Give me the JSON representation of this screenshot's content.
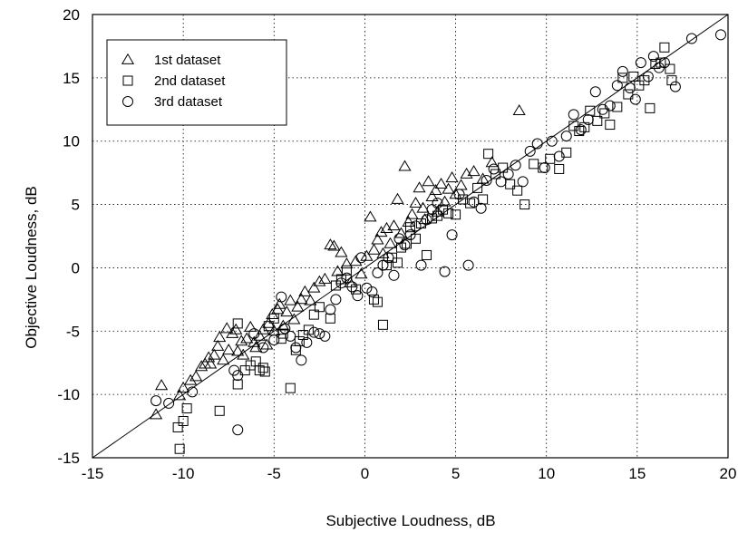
{
  "chart_data": {
    "type": "scatter",
    "title": "",
    "xlabel": "Subjective Loudness, dB",
    "ylabel": "Objective Loudness, dB",
    "xlim": [
      -15,
      20
    ],
    "ylim": [
      -15,
      20
    ],
    "xticks": [
      -15,
      -10,
      -5,
      0,
      5,
      10,
      15,
      20
    ],
    "yticks": [
      -15,
      -10,
      -5,
      0,
      5,
      10,
      15,
      20
    ],
    "x_tick_labels": [
      "-15",
      "-10",
      "-5",
      "0",
      "5",
      "10",
      "15",
      "20"
    ],
    "y_tick_labels": [
      "-15",
      "-10",
      "-5",
      "0",
      "5",
      "10",
      "15",
      "20"
    ],
    "grid": true,
    "legend": {
      "placement": "top-left",
      "entries": [
        "1st dataset",
        "2nd dataset",
        "3rd dataset"
      ]
    },
    "reference_line": {
      "from": [
        -15,
        -15
      ],
      "to": [
        20,
        20
      ]
    },
    "series": [
      {
        "name": "1st dataset",
        "marker": "triangle",
        "points": [
          [
            -11.5,
            -11.6
          ],
          [
            -11.2,
            -9.3
          ],
          [
            -10.2,
            -10.1
          ],
          [
            -10,
            -9.5
          ],
          [
            -9.6,
            -8.9
          ],
          [
            -9.3,
            -8.6
          ],
          [
            -9,
            -7.8
          ],
          [
            -8.8,
            -7.6
          ],
          [
            -8.6,
            -7.1
          ],
          [
            -8.5,
            -7.6
          ],
          [
            -8.3,
            -6.9
          ],
          [
            -8.1,
            -6.2
          ],
          [
            -8,
            -5.5
          ],
          [
            -7.8,
            -7.3
          ],
          [
            -7.6,
            -4.8
          ],
          [
            -7.5,
            -6.5
          ],
          [
            -7.3,
            -5.2
          ],
          [
            -7.1,
            -4.9
          ],
          [
            -7,
            -6.6
          ],
          [
            -6.8,
            -5.8
          ],
          [
            -6.7,
            -6.9
          ],
          [
            -6.5,
            -5.6
          ],
          [
            -6.3,
            -4.7
          ],
          [
            -6.1,
            -5.9
          ],
          [
            -6,
            -6.3
          ],
          [
            -5.8,
            -5.4
          ],
          [
            -5.6,
            -4.9
          ],
          [
            -5.4,
            -6.1
          ],
          [
            -5.3,
            -4.4
          ],
          [
            -5.1,
            -3.7
          ],
          [
            -5,
            -5
          ],
          [
            -4.8,
            -3.3
          ],
          [
            -4.7,
            -2.9
          ],
          [
            -4.5,
            -4.6
          ],
          [
            -4.3,
            -3.5
          ],
          [
            -4.1,
            -2.6
          ],
          [
            -3.9,
            -4.1
          ],
          [
            -3.7,
            -3.1
          ],
          [
            -3.5,
            -2.5
          ],
          [
            -3.3,
            -1.9
          ],
          [
            -3,
            -2.6
          ],
          [
            -2.8,
            -1.6
          ],
          [
            -2.5,
            -1.1
          ],
          [
            -2.2,
            -0.9
          ],
          [
            -1.9,
            1.8
          ],
          [
            -1.7,
            1.7
          ],
          [
            -1.5,
            -0.3
          ],
          [
            -1.3,
            1.2
          ],
          [
            -1,
            0.3
          ],
          [
            -0.8,
            -1.2
          ],
          [
            -0.5,
            0.5
          ],
          [
            -0.2,
            -0.5
          ],
          [
            0.1,
            0.9
          ],
          [
            0.3,
            4
          ],
          [
            0.5,
            1.4
          ],
          [
            0.7,
            2.2
          ],
          [
            0.9,
            2.8
          ],
          [
            1,
            1.1
          ],
          [
            1.2,
            3.1
          ],
          [
            1.4,
            1.9
          ],
          [
            1.6,
            3.3
          ],
          [
            1.8,
            5.4
          ],
          [
            2,
            2.7
          ],
          [
            2.2,
            8
          ],
          [
            2.4,
            3.6
          ],
          [
            2.6,
            4.2
          ],
          [
            2.8,
            5.1
          ],
          [
            3,
            6.3
          ],
          [
            3.2,
            4.7
          ],
          [
            3.3,
            3.8
          ],
          [
            3.5,
            6.8
          ],
          [
            3.7,
            5.6
          ],
          [
            3.9,
            6.1
          ],
          [
            4,
            4.4
          ],
          [
            4.2,
            6.6
          ],
          [
            4.4,
            5.2
          ],
          [
            4.6,
            6.2
          ],
          [
            4.8,
            7.1
          ],
          [
            5,
            5.8
          ],
          [
            5.3,
            6.5
          ],
          [
            5.6,
            7.4
          ],
          [
            6,
            7.6
          ],
          [
            6.5,
            7
          ],
          [
            7,
            8.3
          ],
          [
            8.5,
            12.4
          ]
        ]
      },
      {
        "name": "2nd dataset",
        "marker": "square",
        "points": [
          [
            -10.2,
            -14.3
          ],
          [
            -10.3,
            -12.6
          ],
          [
            -10,
            -12.1
          ],
          [
            -9.8,
            -11.1
          ],
          [
            -8,
            -11.3
          ],
          [
            -7,
            -9.2
          ],
          [
            -7,
            -4.4
          ],
          [
            -6.6,
            -8.1
          ],
          [
            -6.3,
            -7.7
          ],
          [
            -6,
            -7.4
          ],
          [
            -5.8,
            -8.1
          ],
          [
            -5.6,
            -7.9
          ],
          [
            -5.5,
            -8.2
          ],
          [
            -5.3,
            -4.6
          ],
          [
            -5,
            -4
          ],
          [
            -4.6,
            -5.6
          ],
          [
            -4.5,
            -5.2
          ],
          [
            -4.1,
            -9.5
          ],
          [
            -3.8,
            -6.5
          ],
          [
            -3.6,
            -5.8
          ],
          [
            -3.4,
            -5.3
          ],
          [
            -3.1,
            -4.9
          ],
          [
            -2.8,
            -3.7
          ],
          [
            -2.5,
            -3.1
          ],
          [
            -1.9,
            -4
          ],
          [
            -1.6,
            -1.4
          ],
          [
            -1.3,
            -0.9
          ],
          [
            -1,
            -0.2
          ],
          [
            -0.5,
            -1.7
          ],
          [
            0.5,
            -2.5
          ],
          [
            0.7,
            -2.7
          ],
          [
            1,
            -4.5
          ],
          [
            1.2,
            0.2
          ],
          [
            1.5,
            0.8
          ],
          [
            1.8,
            0.4
          ],
          [
            2,
            1.6
          ],
          [
            2.3,
            1.9
          ],
          [
            2.5,
            3.2
          ],
          [
            2.8,
            2.3
          ],
          [
            3.1,
            3.5
          ],
          [
            3.4,
            1
          ],
          [
            3.7,
            3.9
          ],
          [
            4,
            4.1
          ],
          [
            4.3,
            4.6
          ],
          [
            4.6,
            4.3
          ],
          [
            5,
            4.2
          ],
          [
            5.4,
            5.4
          ],
          [
            5.8,
            5.1
          ],
          [
            6.2,
            6.3
          ],
          [
            6.5,
            5.4
          ],
          [
            6.8,
            9
          ],
          [
            7.2,
            7.4
          ],
          [
            7.6,
            7.9
          ],
          [
            8,
            6.6
          ],
          [
            8.4,
            6.1
          ],
          [
            8.8,
            5
          ],
          [
            9.3,
            8.2
          ],
          [
            9.8,
            7.9
          ],
          [
            10.2,
            8.6
          ],
          [
            10.7,
            7.8
          ],
          [
            11.1,
            9.1
          ],
          [
            11.5,
            11.2
          ],
          [
            11.8,
            10.8
          ],
          [
            12.1,
            11.1
          ],
          [
            12.4,
            12.4
          ],
          [
            12.8,
            11.6
          ],
          [
            13.2,
            12.2
          ],
          [
            13.5,
            11.3
          ],
          [
            13.9,
            12.7
          ],
          [
            14.2,
            15
          ],
          [
            14.5,
            13.7
          ],
          [
            14.8,
            15.1
          ],
          [
            15.1,
            14.4
          ],
          [
            15.4,
            14.8
          ],
          [
            15.7,
            12.6
          ],
          [
            16,
            16.1
          ],
          [
            16.3,
            16.2
          ],
          [
            16.5,
            17.4
          ],
          [
            16.8,
            15.7
          ],
          [
            16.9,
            14.8
          ]
        ]
      },
      {
        "name": "3rd dataset",
        "marker": "circle",
        "points": [
          [
            -11.5,
            -10.5
          ],
          [
            -10.8,
            -10.7
          ],
          [
            -9.5,
            -9.8
          ],
          [
            -7.2,
            -8.1
          ],
          [
            -7,
            -8.5
          ],
          [
            -7,
            -12.8
          ],
          [
            -6.1,
            -5.2
          ],
          [
            -5.6,
            -6.3
          ],
          [
            -5,
            -5.7
          ],
          [
            -4.6,
            -2.3
          ],
          [
            -4.4,
            -4.8
          ],
          [
            -4.1,
            -5.4
          ],
          [
            -3.8,
            -6.3
          ],
          [
            -3.5,
            -7.3
          ],
          [
            -3.2,
            -5.9
          ],
          [
            -2.8,
            -5.1
          ],
          [
            -2.5,
            -5.2
          ],
          [
            -2.2,
            -5.4
          ],
          [
            -1.9,
            -3.3
          ],
          [
            -1.6,
            -2.5
          ],
          [
            -1.3,
            -1.2
          ],
          [
            -1,
            -0.8
          ],
          [
            -0.7,
            -1.5
          ],
          [
            -0.4,
            -2.2
          ],
          [
            -0.2,
            0.8
          ],
          [
            0.1,
            -1.6
          ],
          [
            0.4,
            -1.9
          ],
          [
            0.7,
            -0.4
          ],
          [
            1,
            0.2
          ],
          [
            1.3,
            0.8
          ],
          [
            1.6,
            -0.6
          ],
          [
            1.9,
            2.3
          ],
          [
            2.2,
            1.8
          ],
          [
            2.5,
            2.6
          ],
          [
            2.8,
            3.3
          ],
          [
            3.1,
            0.2
          ],
          [
            3.4,
            3.8
          ],
          [
            3.7,
            4.6
          ],
          [
            4,
            5.1
          ],
          [
            4.4,
            -0.3
          ],
          [
            4.8,
            2.6
          ],
          [
            5.2,
            5.8
          ],
          [
            5.7,
            0.2
          ],
          [
            6,
            5.2
          ],
          [
            6.4,
            4.7
          ],
          [
            6.7,
            6.9
          ],
          [
            7.1,
            7.8
          ],
          [
            7.5,
            6.8
          ],
          [
            7.9,
            7.4
          ],
          [
            8.3,
            8.1
          ],
          [
            8.7,
            6.8
          ],
          [
            9.1,
            9.2
          ],
          [
            9.5,
            9.8
          ],
          [
            9.9,
            7.9
          ],
          [
            10.3,
            10
          ],
          [
            10.7,
            8.8
          ],
          [
            11.1,
            10.4
          ],
          [
            11.5,
            12.1
          ],
          [
            11.9,
            10.9
          ],
          [
            12.3,
            11.7
          ],
          [
            12.7,
            13.9
          ],
          [
            13.1,
            12.5
          ],
          [
            13.5,
            12.8
          ],
          [
            13.9,
            14.4
          ],
          [
            14.2,
            15.5
          ],
          [
            14.6,
            14.2
          ],
          [
            14.9,
            13.3
          ],
          [
            15.2,
            16.2
          ],
          [
            15.6,
            15.1
          ],
          [
            15.9,
            16.7
          ],
          [
            16.2,
            15.8
          ],
          [
            16.5,
            16.2
          ],
          [
            17.1,
            14.3
          ],
          [
            18,
            18.1
          ],
          [
            19.6,
            18.4
          ]
        ]
      }
    ]
  }
}
